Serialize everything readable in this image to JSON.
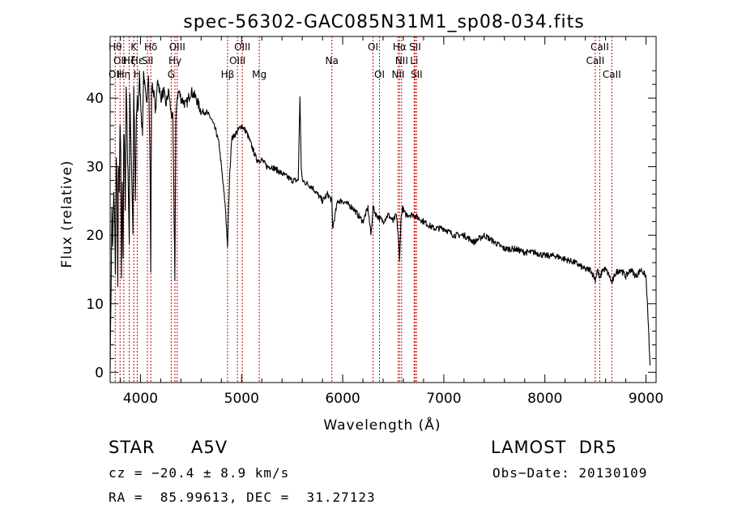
{
  "chart_data": {
    "type": "line",
    "title": "spec-56302-GAC085N31M1_sp08-034.fits",
    "xlabel": "Wavelength (Å)",
    "ylabel": "Flux (relative)",
    "xlim": [
      3700,
      9100
    ],
    "ylim": [
      -1.5,
      49
    ],
    "xticks": [
      4000,
      5000,
      6000,
      7000,
      8000,
      9000
    ],
    "yticks": [
      0,
      10,
      20,
      30,
      40
    ],
    "grid": false,
    "line_color": "#000000",
    "marker_color": "#cc0000",
    "series": [
      {
        "x": [
          3700,
          3712,
          3718,
          3725,
          3735,
          3745,
          3752,
          3760,
          3768,
          3775,
          3782,
          3790,
          3798,
          3805,
          3812,
          3820,
          3828,
          3835,
          3842,
          3850,
          3858,
          3865,
          3872,
          3880,
          3889,
          3895,
          3905,
          3915,
          3925,
          3933,
          3940,
          3950,
          3960,
          3968,
          3975,
          3990,
          4000,
          4010,
          4020,
          4030,
          4040,
          4060,
          4080,
          4095,
          4101,
          4110,
          4130,
          4150,
          4170,
          4200,
          4230,
          4250,
          4280,
          4300,
          4320,
          4330,
          4340,
          4350,
          4360,
          4380,
          4400,
          4450,
          4500,
          4550,
          4600,
          4650,
          4700,
          4750,
          4780,
          4800,
          4820,
          4840,
          4855,
          4861,
          4868,
          4880,
          4900,
          4950,
          5000,
          5050,
          5100,
          5150,
          5200,
          5250,
          5300,
          5400,
          5500,
          5560,
          5577,
          5590,
          5600,
          5700,
          5800,
          5850,
          5893,
          5900,
          5950,
          6000,
          6100,
          6200,
          6250,
          6280,
          6300,
          6330,
          6400,
          6450,
          6500,
          6530,
          6550,
          6563,
          6575,
          6590,
          6620,
          6660,
          6700,
          6800,
          6900,
          7000,
          7100,
          7200,
          7300,
          7400,
          7500,
          7600,
          7700,
          7800,
          7900,
          8000,
          8100,
          8200,
          8300,
          8400,
          8450,
          8498,
          8520,
          8542,
          8570,
          8600,
          8640,
          8662,
          8700,
          8750,
          8800,
          8850,
          8900,
          8950,
          9000,
          9020,
          9040
        ],
        "y": [
          1,
          16,
          24,
          18,
          26,
          22,
          14,
          32,
          27,
          12,
          30,
          26,
          36,
          31,
          14,
          28,
          17,
          35,
          33,
          23,
          42,
          38,
          31,
          27,
          19,
          40,
          34,
          28,
          20,
          41,
          36,
          25,
          37,
          40,
          38,
          43,
          40,
          37,
          35,
          44,
          42,
          39,
          44,
          30,
          15,
          42,
          41,
          38,
          43,
          40,
          41,
          39,
          41,
          38,
          37,
          26,
          14,
          36,
          40,
          41,
          40,
          39,
          41,
          40,
          38,
          38,
          37,
          35,
          33,
          30,
          27,
          24,
          20,
          18,
          22,
          28,
          34,
          35,
          36,
          35,
          33,
          31,
          31,
          30,
          30,
          29,
          28,
          28,
          40,
          30,
          28,
          27,
          25,
          26,
          25,
          21,
          25,
          25,
          24,
          22,
          24,
          20,
          24,
          23,
          22,
          23,
          22,
          23,
          20,
          16,
          22,
          24,
          23,
          23,
          23,
          22,
          21,
          21,
          20,
          20,
          19,
          20,
          19,
          18,
          18,
          17.5,
          17.5,
          17,
          17,
          16.5,
          16,
          15,
          15,
          13.5,
          15,
          13.5,
          15,
          15,
          14,
          13,
          14.5,
          15,
          14,
          15,
          14,
          15,
          14,
          8,
          1
        ]
      }
    ],
    "line_markers": [
      {
        "x": 3750,
        "labels": [
          "Hθ",
          "",
          "OII"
        ]
      },
      {
        "x": 3798,
        "labels": [
          "",
          "OII",
          ""
        ]
      },
      {
        "x": 3835,
        "labels": [
          "",
          "",
          "Hη"
        ]
      },
      {
        "x": 3889,
        "labels": [
          "",
          "Hζ",
          ""
        ]
      },
      {
        "x": 3934,
        "labels": [
          "K",
          "",
          ""
        ]
      },
      {
        "x": 3968,
        "labels": [
          "",
          "Hε",
          "H"
        ]
      },
      {
        "x": 4069,
        "labels": [
          "",
          "SII",
          ""
        ]
      },
      {
        "x": 4102,
        "labels": [
          "Hδ",
          "",
          ""
        ]
      },
      {
        "x": 4304,
        "labels": [
          "",
          "",
          "G"
        ]
      },
      {
        "x": 4341,
        "labels": [
          "",
          "Hγ",
          ""
        ]
      },
      {
        "x": 4363,
        "labels": [
          "OIII",
          "",
          ""
        ]
      },
      {
        "x": 4861,
        "labels": [
          "",
          "",
          "Hβ"
        ]
      },
      {
        "x": 4959,
        "labels": [
          "",
          "OIII",
          ""
        ]
      },
      {
        "x": 5007,
        "labels": [
          "OIII",
          "",
          ""
        ]
      },
      {
        "x": 5175,
        "labels": [
          "",
          "",
          "Mg"
        ]
      },
      {
        "x": 5893,
        "labels": [
          "",
          "Na",
          ""
        ]
      },
      {
        "x": 6300,
        "labels": [
          "OI",
          "",
          ""
        ]
      },
      {
        "x": 6364,
        "labels": [
          "",
          "",
          "OI"
        ]
      },
      {
        "x": 6548,
        "labels": [
          "",
          "",
          "NII"
        ]
      },
      {
        "x": 6563,
        "labels": [
          "Hα",
          "",
          ""
        ]
      },
      {
        "x": 6583,
        "labels": [
          "",
          "NII",
          ""
        ]
      },
      {
        "x": 6707,
        "labels": [
          "",
          "Li",
          ""
        ]
      },
      {
        "x": 6716,
        "labels": [
          "SII",
          "",
          ""
        ]
      },
      {
        "x": 6731,
        "labels": [
          "",
          "",
          "SII"
        ]
      },
      {
        "x": 8498,
        "labels": [
          "",
          "CaII",
          ""
        ]
      },
      {
        "x": 8542,
        "labels": [
          "CaII",
          "",
          ""
        ]
      },
      {
        "x": 8662,
        "labels": [
          "",
          "",
          "CaII"
        ]
      }
    ]
  },
  "info": {
    "object_type": "STAR",
    "subclass": "A5V",
    "survey": "LAMOST  DR5",
    "redshift_text": "cz = −20.4 ± 8.9 km/s",
    "obs_date_text": "Obs−Date: 20130109",
    "coords_text": "RA =  85.99613, DEC =  31.27123"
  }
}
